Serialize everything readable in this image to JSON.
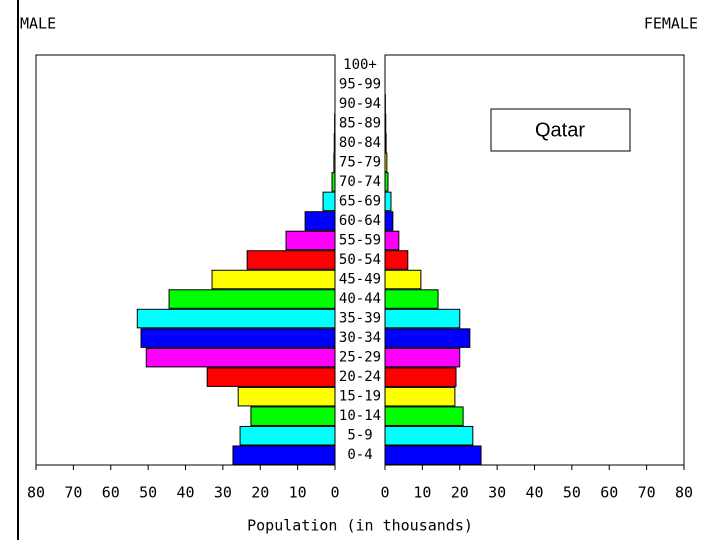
{
  "chart_data": {
    "type": "pyramid",
    "annotation": "Qatar",
    "xlabel": "Population (in thousands)",
    "categories": [
      "0-4",
      "5-9",
      "10-14",
      "15-19",
      "20-24",
      "25-29",
      "30-34",
      "35-39",
      "40-44",
      "45-49",
      "50-54",
      "55-59",
      "60-64",
      "65-69",
      "70-74",
      "75-79",
      "80-84",
      "85-89",
      "90-94",
      "95-99",
      "100+"
    ],
    "colors": [
      "#0000ff",
      "#00ffff",
      "#00ff00",
      "#ffff00",
      "#ff0000",
      "#ff00ff",
      "#0000ff",
      "#00ffff",
      "#00ff00",
      "#ffff00",
      "#ff0000",
      "#ff00ff",
      "#0000ff",
      "#00ffff",
      "#00ff00",
      "#ffff00",
      "#ff0000",
      "#ff00ff",
      "#0000ff",
      "#00ffff",
      "#00ff00"
    ],
    "series": [
      {
        "name": "MALE",
        "values": [
          27.3,
          25.4,
          22.5,
          25.9,
          34.2,
          50.5,
          51.9,
          52.9,
          44.4,
          32.9,
          23.5,
          13.1,
          8.0,
          3.2,
          0.8,
          0.3,
          0.2,
          0.1,
          0,
          0,
          0
        ]
      },
      {
        "name": "FEMALE",
        "values": [
          25.7,
          23.5,
          20.9,
          18.7,
          19,
          20,
          22.7,
          20,
          14.2,
          9.6,
          6.1,
          3.7,
          2.1,
          1.6,
          0.8,
          0.5,
          0.3,
          0.2,
          0.1,
          0,
          0
        ]
      }
    ],
    "xlim": [
      0,
      80
    ],
    "xticks": [
      0,
      10,
      20,
      30,
      40,
      50,
      60,
      70,
      80
    ]
  }
}
